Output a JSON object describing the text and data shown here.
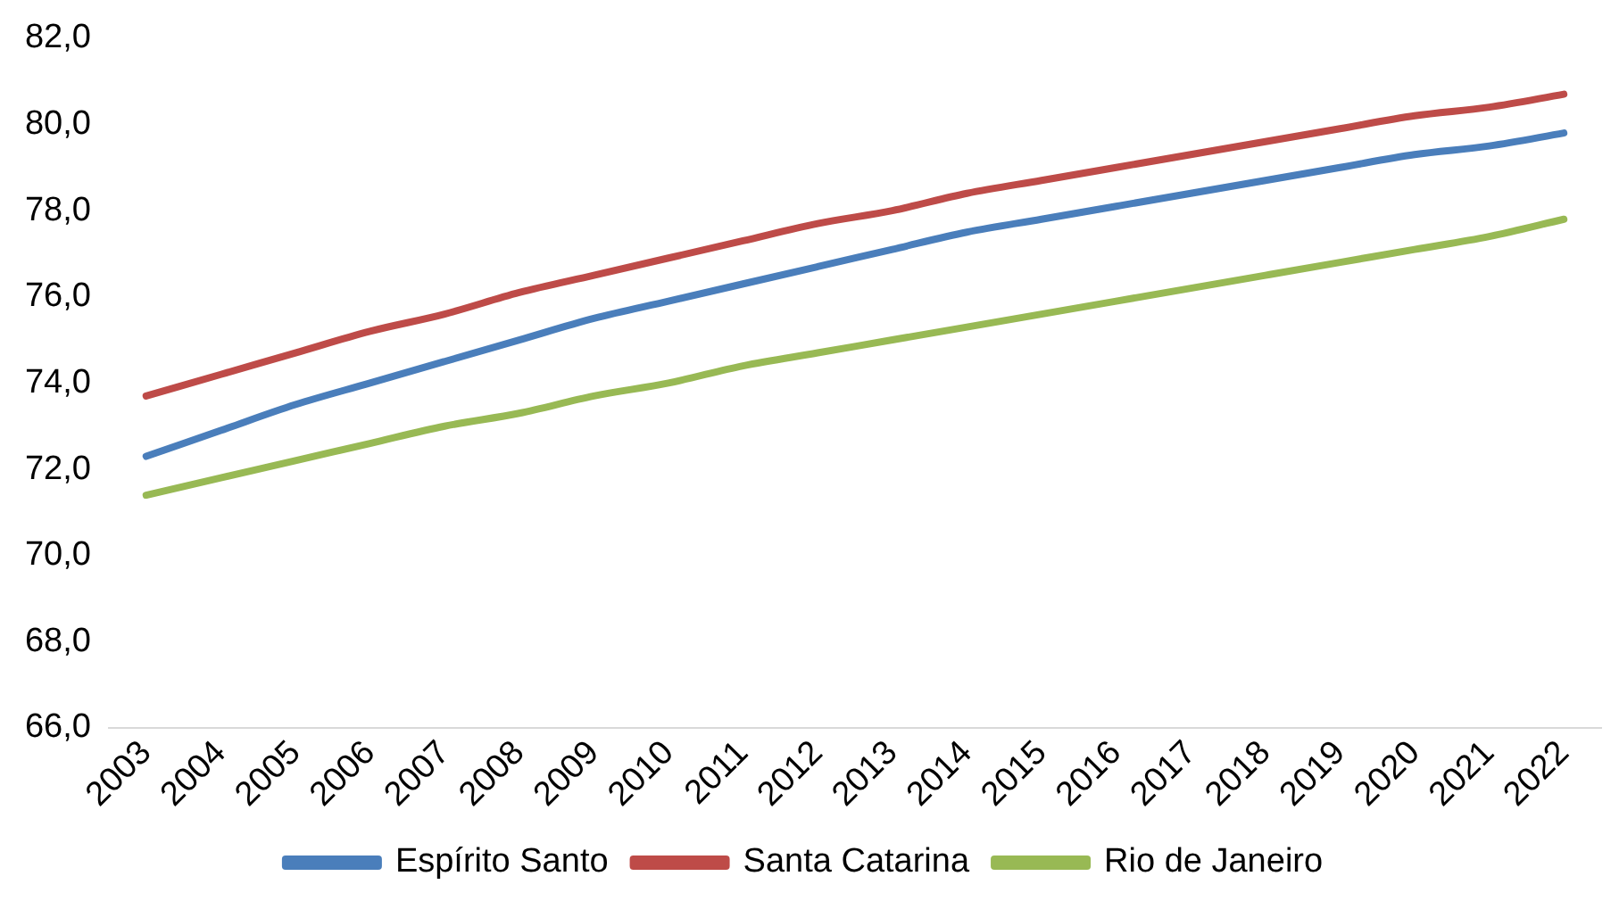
{
  "chart_data": {
    "type": "line",
    "categories": [
      "2003",
      "2004",
      "2005",
      "2006",
      "2007",
      "2008",
      "2009",
      "2010",
      "2011",
      "2012",
      "2013",
      "2014",
      "2015",
      "2016",
      "2017",
      "2018",
      "2019",
      "2020",
      "2021",
      "2022"
    ],
    "series": [
      {
        "name": "Espírito Santo",
        "color": "#4a7ebb",
        "values": [
          72.3,
          72.9,
          73.5,
          74.0,
          74.5,
          75.0,
          75.5,
          75.9,
          76.3,
          76.7,
          77.1,
          77.5,
          77.8,
          78.1,
          78.4,
          78.7,
          79.0,
          79.3,
          79.5,
          79.8
        ]
      },
      {
        "name": "Santa Catarina",
        "color": "#be4b48",
        "values": [
          73.7,
          74.2,
          74.7,
          75.2,
          75.6,
          76.1,
          76.5,
          76.9,
          77.3,
          77.7,
          78.0,
          78.4,
          78.7,
          79.0,
          79.3,
          79.6,
          79.9,
          80.2,
          80.4,
          80.7
        ]
      },
      {
        "name": "Rio de Janeiro",
        "color": "#98b954",
        "values": [
          71.4,
          71.8,
          72.2,
          72.6,
          73.0,
          73.3,
          73.7,
          74.0,
          74.4,
          74.7,
          75.0,
          75.3,
          75.6,
          75.9,
          76.2,
          76.5,
          76.8,
          77.1,
          77.4,
          77.8
        ]
      }
    ],
    "ylim": [
      66,
      82
    ],
    "yticks": [
      {
        "value": 66,
        "label": "66,0"
      },
      {
        "value": 68,
        "label": "68,0"
      },
      {
        "value": 70,
        "label": "70,0"
      },
      {
        "value": 72,
        "label": "72,0"
      },
      {
        "value": 74,
        "label": "74,0"
      },
      {
        "value": 76,
        "label": "76,0"
      },
      {
        "value": 78,
        "label": "78,0"
      },
      {
        "value": 80,
        "label": "80,0"
      },
      {
        "value": 82,
        "label": "82,0"
      }
    ],
    "grid": false,
    "legend": "bottom",
    "marker": "none",
    "line_style": "solid"
  }
}
